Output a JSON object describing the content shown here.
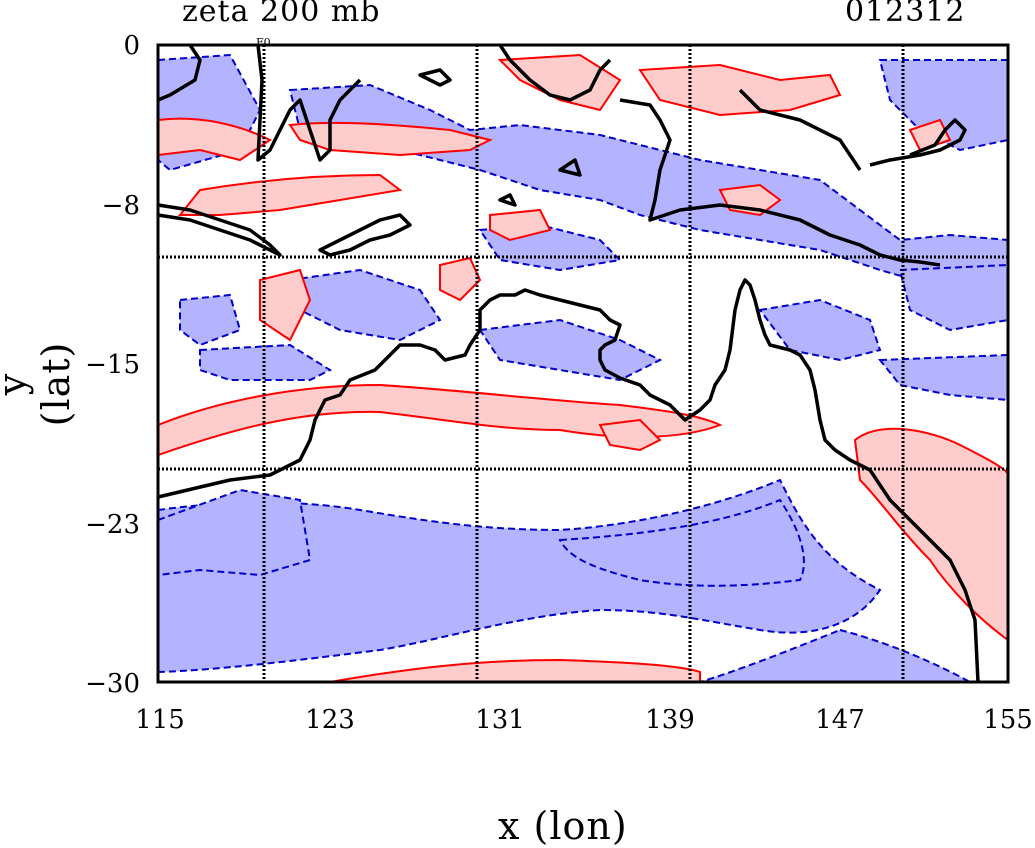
{
  "map": {
    "title": "zeta 200 mb",
    "datetime": "012312",
    "xlabel": "x (lon)",
    "ylabel": "y (lat)",
    "station_marker": "F0",
    "x_ticks": [
      "115",
      "123",
      "131",
      "139",
      "147",
      "155"
    ],
    "y_ticks": [
      "0",
      "−8",
      "−15",
      "−23",
      "−30"
    ],
    "x_range": [
      115,
      155
    ],
    "y_range": [
      -30,
      0
    ],
    "grid_lon": [
      120,
      130,
      140,
      150
    ],
    "grid_lat": [
      -10,
      -20
    ],
    "colors": {
      "positive_fill": "#ffcccc",
      "positive_contour": "#ff0000",
      "negative_fill": "#b3b3ff",
      "negative_contour": "#0000cc",
      "coastline": "#000000"
    }
  }
}
